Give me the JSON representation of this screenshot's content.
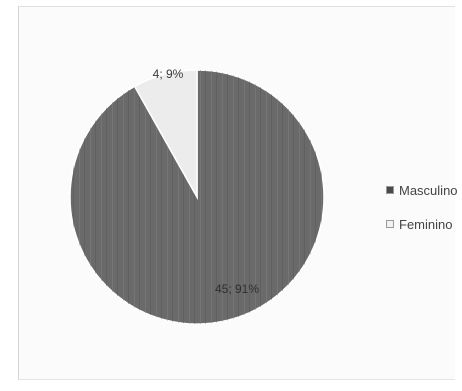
{
  "chart_data": {
    "type": "pie",
    "series": [
      {
        "values": [
          {
            "label": "Masculino",
            "value": 45,
            "percent": 91,
            "data_label": "45; 91%",
            "color": "#6a6a6a"
          },
          {
            "label": "Feminino",
            "value": 4,
            "percent": 9,
            "data_label": "4; 9%",
            "color": "#ececec"
          }
        ]
      }
    ],
    "legend": {
      "placement": "right",
      "entries": [
        "Masculino",
        "Feminino"
      ]
    },
    "title": ""
  }
}
